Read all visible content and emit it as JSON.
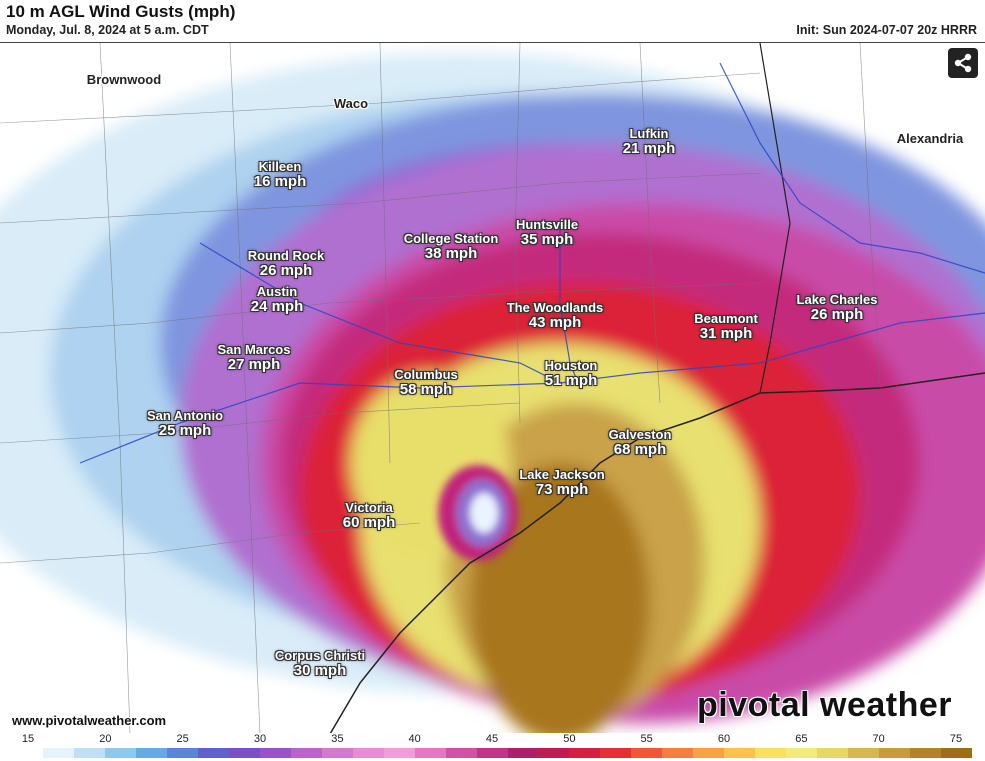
{
  "header": {
    "title": "10 m AGL Wind Gusts (mph)",
    "subtitle": "Monday, Jul. 8, 2024 at 5 a.m. CDT",
    "init": "Init: Sun 2024-07-07 20z HRRR"
  },
  "places": [
    {
      "name": "Brownwood"
    },
    {
      "name": "Waco"
    },
    {
      "name": "Alexandria"
    }
  ],
  "cities": [
    {
      "name": "Lufkin",
      "value": "21 mph"
    },
    {
      "name": "Killeen",
      "value": "16 mph"
    },
    {
      "name": "Huntsville",
      "value": "35 mph"
    },
    {
      "name": "College Station",
      "value": "38 mph"
    },
    {
      "name": "Round Rock",
      "value": "26 mph"
    },
    {
      "name": "Austin",
      "value": "24 mph"
    },
    {
      "name": "Lake Charles",
      "value": "26 mph"
    },
    {
      "name": "The Woodlands",
      "value": "43 mph"
    },
    {
      "name": "Beaumont",
      "value": "31 mph"
    },
    {
      "name": "San Marcos",
      "value": "27 mph"
    },
    {
      "name": "Houston",
      "value": "51 mph"
    },
    {
      "name": "Columbus",
      "value": "58 mph"
    },
    {
      "name": "San Antonio",
      "value": "25 mph"
    },
    {
      "name": "Galveston",
      "value": "68 mph"
    },
    {
      "name": "Lake Jackson",
      "value": "73 mph"
    },
    {
      "name": "Victoria",
      "value": "60 mph"
    },
    {
      "name": "Corpus Christi",
      "value": "30 mph"
    }
  ],
  "footer": {
    "site": "www.pivotalweather.com",
    "brand": "pivotal weather"
  },
  "share_icon": "share-icon",
  "legend": {
    "ticks": [
      "15",
      "20",
      "25",
      "30",
      "35",
      "40",
      "45",
      "50",
      "55",
      "60",
      "65",
      "70",
      "75"
    ],
    "colors": [
      "#ffffff",
      "#e6f3fb",
      "#bfe0f4",
      "#8ec8ec",
      "#6aa8e0",
      "#5b86d8",
      "#6060d0",
      "#7a4fc8",
      "#9a52c4",
      "#b865c6",
      "#d07ad0",
      "#e48ed8",
      "#ee9fd8",
      "#e676c4",
      "#d44fa6",
      "#c23286",
      "#b01e6a",
      "#c01c52",
      "#d81e40",
      "#ea2c34",
      "#f4543a",
      "#f87c3c",
      "#fba240",
      "#fdc24a",
      "#fbe05c",
      "#f1ec78",
      "#e6d860",
      "#d8b84a",
      "#c89a38",
      "#b48226",
      "#9f6c1a"
    ]
  }
}
